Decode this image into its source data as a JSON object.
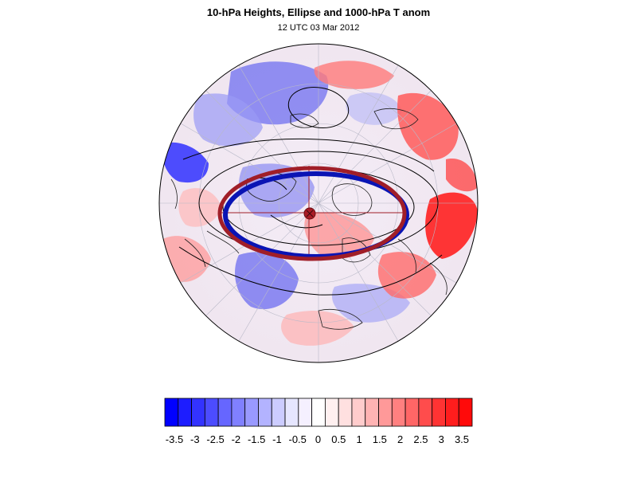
{
  "header": {
    "title": "10-hPa Heights, Ellipse and 1000-hPa T anom",
    "subtitle": "12 UTC 03 Mar 2012"
  },
  "map": {
    "projection": "orthographic",
    "center": "north-pole",
    "overlays": [
      "10-hPa height contours",
      "fitted ellipse (blue)",
      "fitted ellipse (red)",
      "ellipse axes",
      "ellipse centre marker",
      "coastlines",
      "lat-lon grid"
    ]
  },
  "colors": {
    "negative": "#1010ff",
    "positive": "#ff1010",
    "ellipse_blue": "#0a14b4",
    "ellipse_red": "#a01e28",
    "center_marker": "#aa1c26"
  },
  "colorbar": {
    "labels": [
      "-3.5",
      "-3",
      "-2.5",
      "-2",
      "-1.5",
      "-1",
      "-0.5",
      "0",
      "0.5",
      "1",
      "1.5",
      "2",
      "2.5",
      "3",
      "3.5"
    ],
    "fills": [
      "#0000ff",
      "#1d1dff",
      "#3333ff",
      "#4c4cff",
      "#6666ff",
      "#8080ff",
      "#9999ff",
      "#b3b3ff",
      "#ccccff",
      "#e6e6ff",
      "#f5f0ff",
      "#ffffff",
      "#fff0f0",
      "#ffe0e0",
      "#ffcccc",
      "#ffb3b3",
      "#ff9999",
      "#ff8080",
      "#ff6666",
      "#ff4c4c",
      "#ff3333",
      "#ff1d1d",
      "#ff0a0a"
    ]
  }
}
